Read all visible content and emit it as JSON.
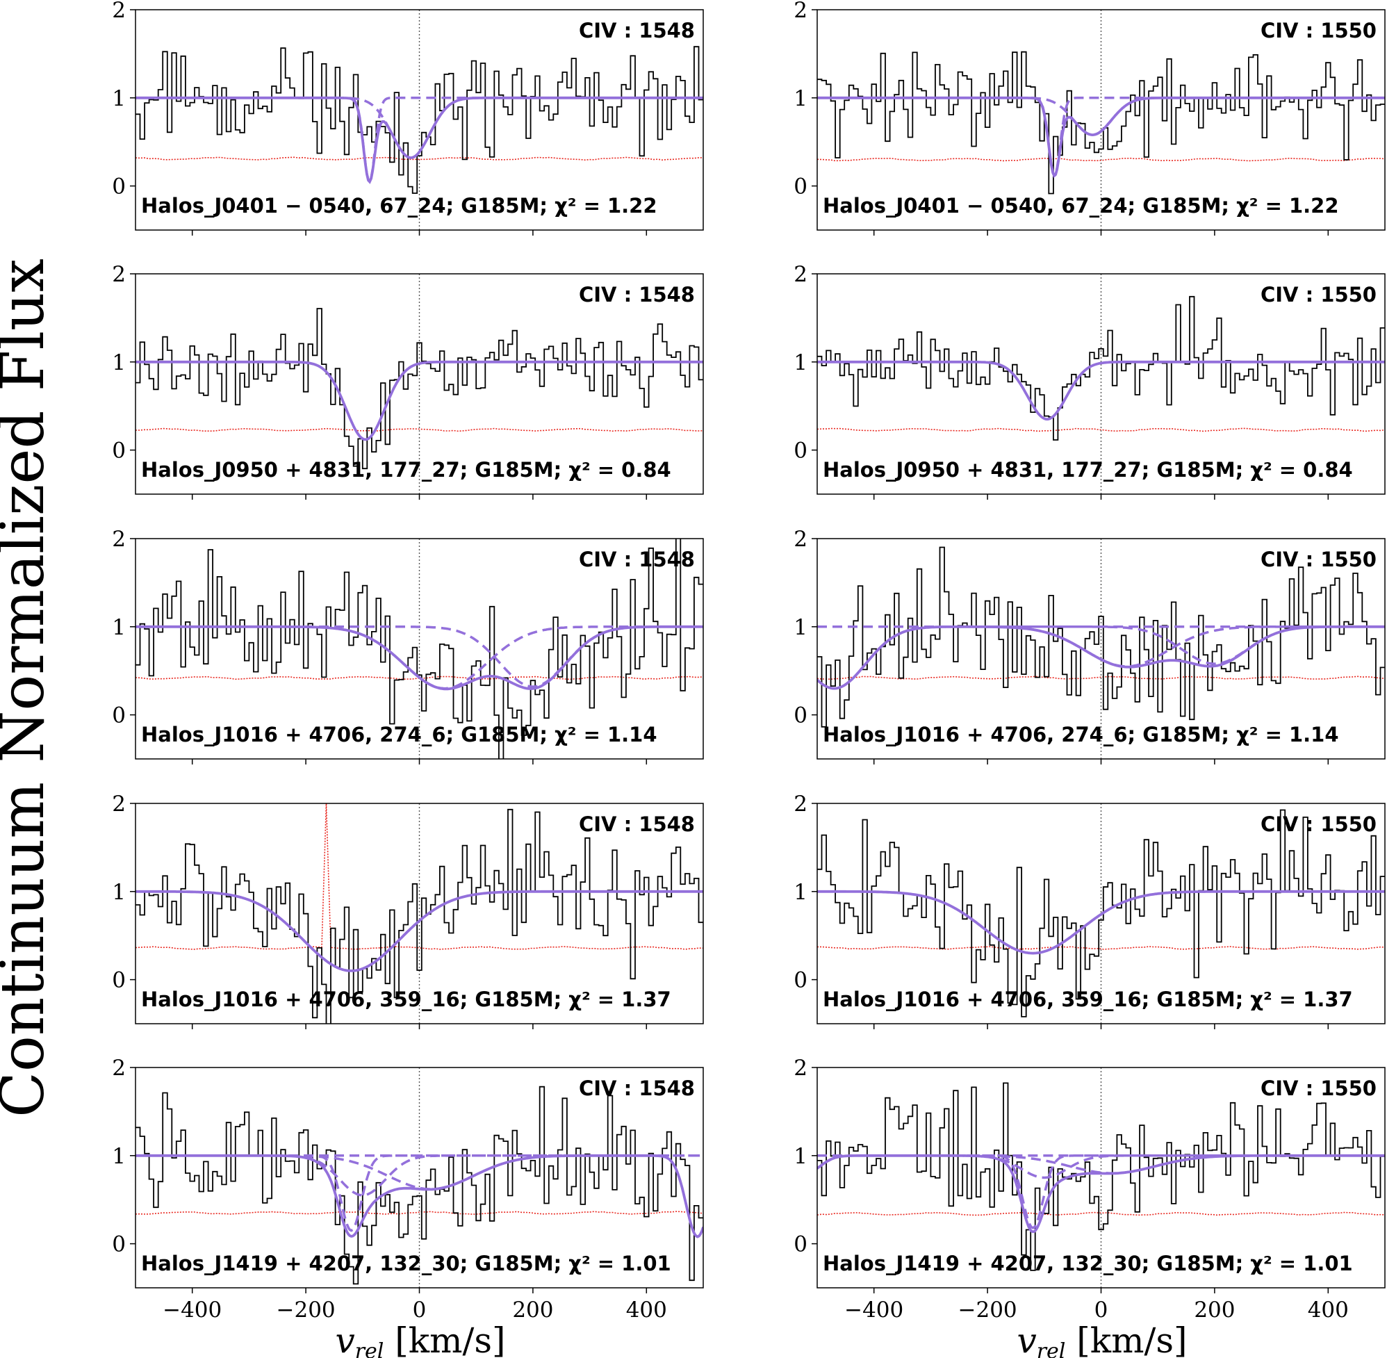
{
  "figure": {
    "ylabel": "Continuum Normalized Flux",
    "xlabel_var": "v",
    "xlabel_sub": "rel",
    "xlabel_unit": " [km/s]",
    "colors": {
      "data": "#000000",
      "error": "#e8271f",
      "model": "#9370db",
      "zero_line": "#555555"
    }
  },
  "chart_data": [
    {
      "type": "line",
      "panel": "row1-left",
      "ion": "CIV : 1548",
      "label": "Halos_J0401 − 0540, 67_24; G185M; χ² = 1.22",
      "xlim": [
        -500,
        500
      ],
      "ylim": [
        -0.5,
        2
      ],
      "xticks": [
        -400,
        -200,
        0,
        200,
        400
      ],
      "yticks": [
        0,
        1,
        2
      ],
      "error_level": 0.31,
      "seed": 11,
      "components": [
        {
          "v": -88,
          "depth": 0.95,
          "width": 10
        },
        {
          "v": -15,
          "depth": 0.68,
          "width": 33
        }
      ],
      "show_components": true
    },
    {
      "type": "line",
      "panel": "row1-right",
      "ion": "CIV : 1550",
      "label": "Halos_J0401 − 0540, 67_24; G185M; χ² = 1.22",
      "xlim": [
        -500,
        500
      ],
      "ylim": [
        -0.5,
        2
      ],
      "xticks": [
        -400,
        -200,
        0,
        200,
        400
      ],
      "yticks": [
        0,
        1,
        2
      ],
      "error_level": 0.3,
      "seed": 12,
      "components": [
        {
          "v": -82,
          "depth": 0.88,
          "width": 10
        },
        {
          "v": -15,
          "depth": 0.42,
          "width": 33
        }
      ],
      "show_components": true
    },
    {
      "type": "line",
      "panel": "row2-left",
      "ion": "CIV : 1548",
      "label": "Halos_J0950 + 4831, 177_27; G185M; χ² = 0.84",
      "xlim": [
        -500,
        500
      ],
      "ylim": [
        -0.5,
        2
      ],
      "xticks": [
        -400,
        -200,
        0,
        200,
        400
      ],
      "yticks": [
        0,
        1,
        2
      ],
      "error_level": 0.23,
      "seed": 21,
      "components": [
        {
          "v": -95,
          "depth": 0.88,
          "width": 34
        }
      ],
      "show_components": false
    },
    {
      "type": "line",
      "panel": "row2-right",
      "ion": "CIV : 1550",
      "label": "Halos_J0950 + 4831, 177_27; G185M; χ² = 0.84",
      "xlim": [
        -500,
        500
      ],
      "ylim": [
        -0.5,
        2
      ],
      "xticks": [
        -400,
        -200,
        0,
        200,
        400
      ],
      "yticks": [
        0,
        1,
        2
      ],
      "error_level": 0.23,
      "seed": 22,
      "components": [
        {
          "v": -95,
          "depth": 0.65,
          "width": 34
        }
      ],
      "show_components": false
    },
    {
      "type": "line",
      "panel": "row3-left",
      "ion": "CIV : 1548",
      "label": "Halos_J1016 + 4706, 274_6; G185M; χ² = 1.14",
      "xlim": [
        -500,
        500
      ],
      "ylim": [
        -0.5,
        2
      ],
      "xticks": [
        -400,
        -200,
        0,
        200,
        400
      ],
      "yticks": [
        0,
        1,
        2
      ],
      "error_level": 0.42,
      "seed": 31,
      "components": [
        {
          "v": 45,
          "depth": 0.7,
          "width": 72
        },
        {
          "v": 200,
          "depth": 0.68,
          "width": 58
        }
      ],
      "show_components": true
    },
    {
      "type": "line",
      "panel": "row3-right",
      "ion": "CIV : 1550",
      "label": "Halos_J1016 + 4706, 274_6; G185M; χ² = 1.14",
      "xlim": [
        -500,
        500
      ],
      "ylim": [
        -0.5,
        2
      ],
      "xticks": [
        -400,
        -200,
        0,
        200,
        400
      ],
      "yticks": [
        0,
        1,
        2
      ],
      "error_level": 0.42,
      "seed": 32,
      "components": [
        {
          "v": 45,
          "depth": 0.45,
          "width": 72
        },
        {
          "v": 200,
          "depth": 0.42,
          "width": 58
        },
        {
          "v": -470,
          "depth": 0.7,
          "width": 55
        }
      ],
      "show_components": true
    },
    {
      "type": "line",
      "panel": "row4-left",
      "ion": "CIV : 1548",
      "label": "Halos_J1016 + 4706, 359_16; G185M; χ² = 1.37",
      "xlim": [
        -500,
        500
      ],
      "ylim": [
        -0.5,
        2
      ],
      "xticks": [
        -400,
        -200,
        0,
        200,
        400
      ],
      "yticks": [
        0,
        1,
        2
      ],
      "error_level": 0.36,
      "seed": 41,
      "components": [
        {
          "v": -120,
          "depth": 0.9,
          "width": 85
        }
      ],
      "show_components": false,
      "spike": {
        "v": -165,
        "height": 2.0
      }
    },
    {
      "type": "line",
      "panel": "row4-right",
      "ion": "CIV : 1550",
      "label": "Halos_J1016 + 4706, 359_16; G185M; χ² = 1.37",
      "xlim": [
        -500,
        500
      ],
      "ylim": [
        -0.5,
        2
      ],
      "xticks": [
        -400,
        -200,
        0,
        200,
        400
      ],
      "yticks": [
        0,
        1,
        2
      ],
      "error_level": 0.36,
      "seed": 42,
      "components": [
        {
          "v": -120,
          "depth": 0.7,
          "width": 85
        }
      ],
      "show_components": false
    },
    {
      "type": "line",
      "panel": "row5-left",
      "ion": "CIV : 1548",
      "label": "Halos_J1419 + 4207, 132_30; G185M; χ² = 1.01",
      "xlim": [
        -500,
        500
      ],
      "ylim": [
        -0.5,
        2
      ],
      "xticks": [
        -400,
        -200,
        0,
        200,
        400
      ],
      "yticks": [
        0,
        1,
        2
      ],
      "error_level": 0.35,
      "seed": 51,
      "components": [
        {
          "v": -100,
          "depth": 0.45,
          "width": 40
        },
        {
          "v": -120,
          "depth": 0.85,
          "width": 18
        },
        {
          "v": 20,
          "depth": 0.38,
          "width": 75
        },
        {
          "v": 490,
          "depth": 0.92,
          "width": 20
        }
      ],
      "show_components": true
    },
    {
      "type": "line",
      "panel": "row5-right",
      "ion": "CIV : 1550",
      "label": "Halos_J1419 + 4207, 132_30; G185M; χ² = 1.01",
      "xlim": [
        -500,
        500
      ],
      "ylim": [
        -0.5,
        2
      ],
      "xticks": [
        -400,
        -200,
        0,
        200,
        400
      ],
      "yticks": [
        0,
        1,
        2
      ],
      "error_level": 0.34,
      "seed": 52,
      "components": [
        {
          "v": -100,
          "depth": 0.25,
          "width": 40
        },
        {
          "v": -120,
          "depth": 0.82,
          "width": 18
        },
        {
          "v": 20,
          "depth": 0.2,
          "width": 75
        },
        {
          "v": -520,
          "depth": 0.2,
          "width": 25
        }
      ],
      "show_components": true
    }
  ]
}
